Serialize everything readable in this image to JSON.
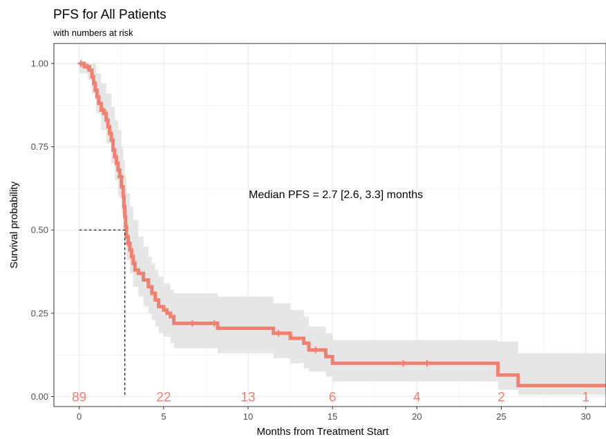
{
  "chart_data": {
    "type": "line",
    "title": "PFS for All Patients",
    "subtitle": "with numbers at risk",
    "xlabel": "Months from Treatment Start",
    "ylabel": "Survival probability",
    "xlim": [
      -1.5,
      31.2
    ],
    "ylim": [
      -0.03,
      1.06
    ],
    "x_ticks": [
      0,
      5,
      10,
      15,
      20,
      25,
      30
    ],
    "x_tick_labels": [
      "0",
      "5",
      "10",
      "15",
      "20",
      "25",
      "30"
    ],
    "y_ticks": [
      0.0,
      0.25,
      0.5,
      0.75,
      1.0
    ],
    "y_tick_labels": [
      "0.00",
      "0.25",
      "0.50",
      "0.75",
      "1.00"
    ],
    "grid": true,
    "annotation": "Median PFS = 2.7 [2.6, 3.3] months",
    "median": {
      "x": 2.7,
      "y": 0.5
    },
    "colors": {
      "curve": "#F08070",
      "band": "#E6E6E6",
      "panel_border": "#333333",
      "grid": "#EBEBEB"
    },
    "series": [
      {
        "steps": [
          [
            0,
            1.0
          ],
          [
            0.3,
            0.99
          ],
          [
            0.6,
            0.98
          ],
          [
            0.75,
            0.96
          ],
          [
            0.85,
            0.94
          ],
          [
            0.95,
            0.92
          ],
          [
            1.05,
            0.9
          ],
          [
            1.15,
            0.88
          ],
          [
            1.3,
            0.86
          ],
          [
            1.45,
            0.85
          ],
          [
            1.6,
            0.83
          ],
          [
            1.7,
            0.81
          ],
          [
            1.8,
            0.79
          ],
          [
            1.9,
            0.77
          ],
          [
            2.0,
            0.74
          ],
          [
            2.1,
            0.72
          ],
          [
            2.2,
            0.7
          ],
          [
            2.3,
            0.68
          ],
          [
            2.4,
            0.66
          ],
          [
            2.5,
            0.63
          ],
          [
            2.6,
            0.6
          ],
          [
            2.65,
            0.57
          ],
          [
            2.7,
            0.54
          ],
          [
            2.75,
            0.51
          ],
          [
            2.8,
            0.48
          ],
          [
            2.9,
            0.46
          ],
          [
            3.0,
            0.44
          ],
          [
            3.1,
            0.42
          ],
          [
            3.2,
            0.4
          ],
          [
            3.3,
            0.38
          ],
          [
            3.5,
            0.37
          ],
          [
            3.8,
            0.35
          ],
          [
            4.1,
            0.33
          ],
          [
            4.3,
            0.31
          ],
          [
            4.5,
            0.29
          ],
          [
            4.7,
            0.27
          ],
          [
            5.0,
            0.26
          ],
          [
            5.2,
            0.25
          ],
          [
            5.4,
            0.24
          ],
          [
            5.6,
            0.22
          ],
          [
            8.2,
            0.205
          ],
          [
            11.5,
            0.19
          ],
          [
            12.5,
            0.175
          ],
          [
            13.3,
            0.16
          ],
          [
            13.6,
            0.14
          ],
          [
            14.6,
            0.12
          ],
          [
            15.0,
            0.1
          ],
          [
            24.8,
            0.065
          ],
          [
            26.0,
            0.033
          ]
        ],
        "x_end": 31.2,
        "ci_lower": [
          [
            0,
            0.97
          ],
          [
            0.5,
            0.95
          ],
          [
            0.75,
            0.91
          ],
          [
            1.0,
            0.85
          ],
          [
            1.3,
            0.8
          ],
          [
            1.6,
            0.76
          ],
          [
            1.9,
            0.7
          ],
          [
            2.1,
            0.65
          ],
          [
            2.3,
            0.6
          ],
          [
            2.5,
            0.55
          ],
          [
            2.6,
            0.5
          ],
          [
            2.7,
            0.46
          ],
          [
            2.8,
            0.41
          ],
          [
            3.0,
            0.37
          ],
          [
            3.2,
            0.33
          ],
          [
            3.5,
            0.3
          ],
          [
            3.8,
            0.27
          ],
          [
            4.1,
            0.25
          ],
          [
            4.3,
            0.23
          ],
          [
            4.5,
            0.21
          ],
          [
            4.7,
            0.19
          ],
          [
            5.0,
            0.18
          ],
          [
            5.4,
            0.16
          ],
          [
            5.6,
            0.145
          ],
          [
            8.2,
            0.13
          ],
          [
            11.5,
            0.115
          ],
          [
            12.5,
            0.1
          ],
          [
            13.3,
            0.085
          ],
          [
            13.6,
            0.075
          ],
          [
            14.6,
            0.06
          ],
          [
            15.0,
            0.045
          ],
          [
            24.8,
            0.02
          ],
          [
            26.0,
            0.005
          ]
        ],
        "ci_upper": [
          [
            0,
            1.0
          ],
          [
            0.75,
            1.0
          ],
          [
            1.0,
            0.97
          ],
          [
            1.3,
            0.94
          ],
          [
            1.6,
            0.91
          ],
          [
            1.9,
            0.87
          ],
          [
            2.1,
            0.83
          ],
          [
            2.3,
            0.8
          ],
          [
            2.5,
            0.75
          ],
          [
            2.6,
            0.71
          ],
          [
            2.7,
            0.66
          ],
          [
            2.8,
            0.61
          ],
          [
            3.0,
            0.57
          ],
          [
            3.2,
            0.53
          ],
          [
            3.5,
            0.48
          ],
          [
            3.8,
            0.45
          ],
          [
            4.1,
            0.42
          ],
          [
            4.3,
            0.4
          ],
          [
            4.5,
            0.38
          ],
          [
            4.7,
            0.36
          ],
          [
            5.0,
            0.34
          ],
          [
            5.4,
            0.32
          ],
          [
            5.6,
            0.31
          ],
          [
            8.2,
            0.3
          ],
          [
            11.5,
            0.28
          ],
          [
            12.5,
            0.26
          ],
          [
            13.3,
            0.24
          ],
          [
            13.6,
            0.21
          ],
          [
            14.6,
            0.19
          ],
          [
            15.0,
            0.17
          ],
          [
            24.8,
            0.165
          ],
          [
            26.0,
            0.13
          ]
        ],
        "censor_x": [
          0.1,
          0.5,
          1.4,
          2.45,
          2.9,
          6.7,
          8.0,
          11.8,
          14.0,
          19.2,
          20.6
        ]
      }
    ],
    "risk_table": {
      "times": [
        0,
        5,
        10,
        15,
        20,
        25,
        30
      ],
      "counts": [
        "89",
        "22",
        "13",
        "6",
        "4",
        "2",
        "1"
      ],
      "y": 0.0
    }
  }
}
